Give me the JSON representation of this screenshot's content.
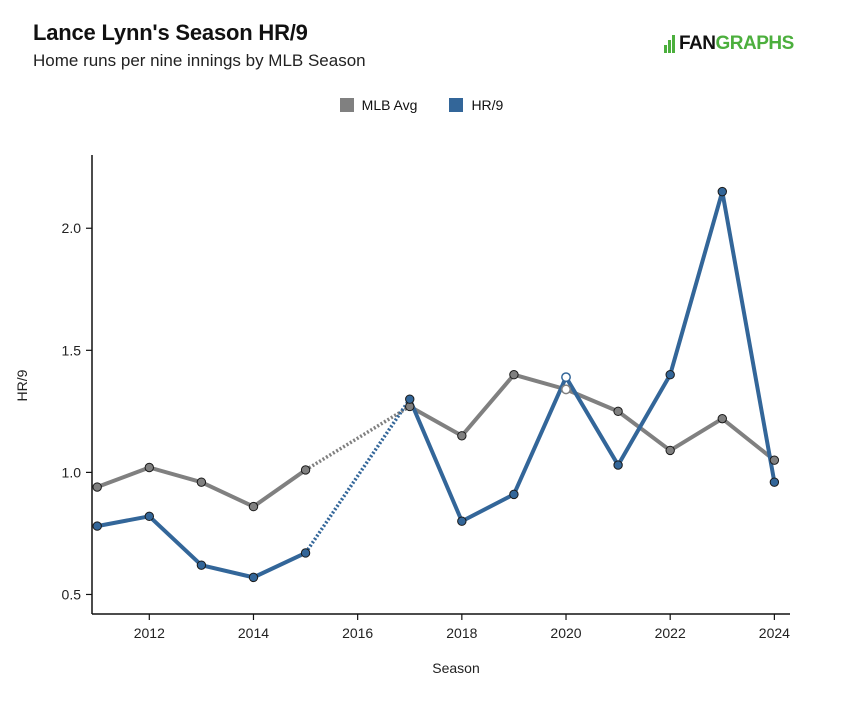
{
  "header": {
    "title": "Lance Lynn's Season HR/9",
    "subtitle": "Home runs per nine innings by MLB Season",
    "logo_prefix": "FAN",
    "logo_suffix": "GRAPHS"
  },
  "colors": {
    "mlb": "#808080",
    "player": "#336699",
    "brand_green": "#4caf3d"
  },
  "chart_data": {
    "type": "line",
    "xlabel": "Season",
    "ylabel": "HR/9",
    "xlim": [
      2010.9,
      2024.3
    ],
    "ylim": [
      0.42,
      2.3
    ],
    "x_ticks": [
      2012,
      2014,
      2016,
      2018,
      2020,
      2022,
      2024
    ],
    "y_ticks": [
      0.5,
      1.0,
      1.5,
      2.0
    ],
    "y_tick_labels": [
      "0.5",
      "1.0",
      "1.5",
      "2.0"
    ],
    "legend": {
      "position": "top-center",
      "entries": [
        "MLB Avg",
        "HR/9"
      ]
    },
    "grid": false,
    "series": [
      {
        "name": "MLB Avg",
        "color": "#808080",
        "x": [
          2011,
          2012,
          2013,
          2014,
          2015,
          2017,
          2018,
          2019,
          2020,
          2021,
          2022,
          2023,
          2024
        ],
        "y": [
          0.94,
          1.02,
          0.96,
          0.86,
          1.01,
          1.27,
          1.15,
          1.4,
          1.34,
          1.25,
          1.09,
          1.22,
          1.05
        ],
        "gap_after": 2015,
        "hollow_at": [
          2020
        ]
      },
      {
        "name": "HR/9",
        "color": "#336699",
        "x": [
          2011,
          2012,
          2013,
          2014,
          2015,
          2017,
          2018,
          2019,
          2020,
          2021,
          2022,
          2023,
          2024
        ],
        "y": [
          0.78,
          0.82,
          0.62,
          0.57,
          0.67,
          1.3,
          0.8,
          0.91,
          1.39,
          1.03,
          1.4,
          2.15,
          0.96
        ],
        "gap_after": 2015,
        "hollow_at": [
          2020
        ]
      }
    ]
  }
}
